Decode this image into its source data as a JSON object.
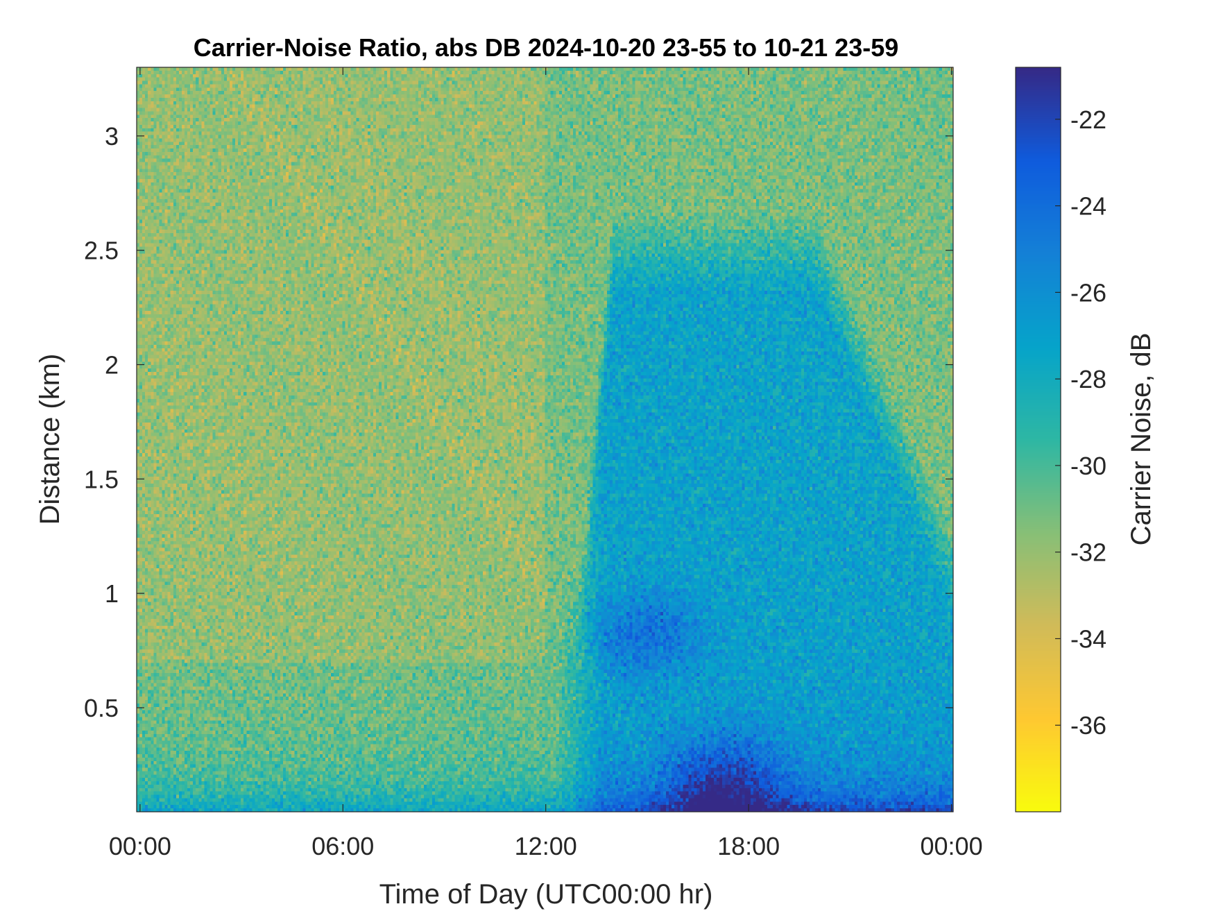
{
  "chart_data": {
    "type": "heatmap",
    "title": "Carrier-Noise Ratio, abs DB 2024-10-20 23-55 to 10-21 23-59",
    "xlabel": "Time of Day (UTC00:00 hr)",
    "ylabel": "Distance (km)",
    "colorbar_label": "Carrier Noise, dB",
    "x_ticks": [
      {
        "value": 0,
        "label": "00:00"
      },
      {
        "value": 6,
        "label": "06:00"
      },
      {
        "value": 12,
        "label": "12:00"
      },
      {
        "value": 18,
        "label": "18:00"
      },
      {
        "value": 24,
        "label": "00:00"
      }
    ],
    "y_ticks": [
      {
        "value": 0.5,
        "label": "0.5"
      },
      {
        "value": 1,
        "label": "1"
      },
      {
        "value": 1.5,
        "label": "1.5"
      },
      {
        "value": 2,
        "label": "2"
      },
      {
        "value": 2.5,
        "label": "2.5"
      },
      {
        "value": 3,
        "label": "3"
      }
    ],
    "xlim": [
      -0.1,
      24.05
    ],
    "ylim": [
      0.045,
      3.3
    ],
    "color_ticks": [
      {
        "value": -22,
        "label": "-22"
      },
      {
        "value": -24,
        "label": "-24"
      },
      {
        "value": -26,
        "label": "-26"
      },
      {
        "value": -28,
        "label": "-28"
      },
      {
        "value": -30,
        "label": "-30"
      },
      {
        "value": -32,
        "label": "-32"
      },
      {
        "value": -34,
        "label": "-34"
      },
      {
        "value": -36,
        "label": "-36"
      }
    ],
    "clim": [
      -38,
      -20.8
    ],
    "colormap": "parula",
    "colormap_stops": [
      "#352a87",
      "#0f5cdd",
      "#1481d6",
      "#06a4ca",
      "#2eb7a4",
      "#87bf77",
      "#d1bb59",
      "#fec832",
      "#f9fb0e"
    ],
    "field_summary": [
      {
        "region": "background (most of the field)",
        "approx_value_db": -31
      },
      {
        "region": "near-ground band below 0.1 km",
        "approx_value_db": -25
      },
      {
        "region": "plume 13:00-24:00, up to about 2.5 km",
        "approx_value_db": -27
      },
      {
        "region": "core near 0.8 km around 14:00-16:00",
        "approx_value_db": -23.5
      },
      {
        "region": "core near 0.2 km around 16:30-18:30",
        "approx_value_db": -22
      }
    ]
  }
}
